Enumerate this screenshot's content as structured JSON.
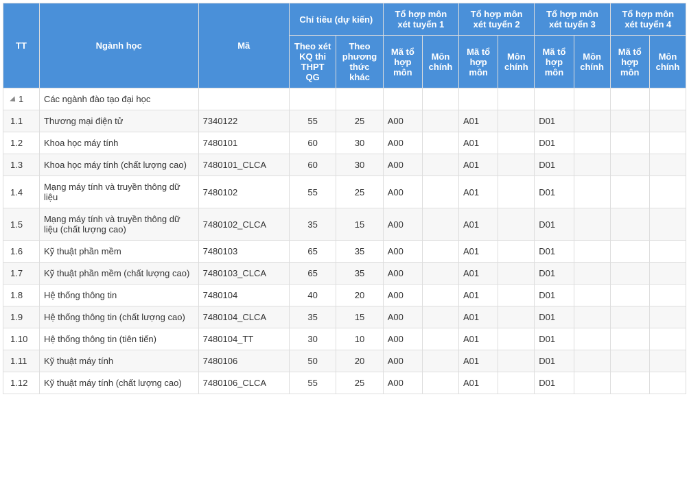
{
  "colors": {
    "header_bg": "#4a90d9",
    "header_fg": "#ffffff",
    "border": "#dddddd",
    "row_alt": "#f7f7f7",
    "text": "#333333"
  },
  "header": {
    "tt": "TT",
    "nganh": "Ngành học",
    "ma": "Mã",
    "chitieu": "Chỉ tiêu (dự kiến)",
    "th1": "Tổ hợp môn xét tuyển 1",
    "th2": "Tổ hợp môn xét tuyển 2",
    "th3": "Tổ hợp môn xét tuyển 3",
    "th4": "Tổ hợp môn xét tuyển 4",
    "sub_kq": "Theo xét KQ thi THPT QG",
    "sub_khac": "Theo phương thức khác",
    "sub_mato": "Mã tổ hợp môn",
    "sub_monchinh": "Môn chính"
  },
  "rows": [
    {
      "tt": "1",
      "expand": true,
      "name": "Các ngành đào tạo đại học",
      "code": "",
      "q1": "",
      "q2": "",
      "m1": "",
      "mc1": "",
      "m2": "",
      "mc2": "",
      "m3": "",
      "mc3": "",
      "m4": "",
      "mc4": ""
    },
    {
      "tt": "1.1",
      "expand": false,
      "name": "Thương mại điện tử",
      "code": "7340122",
      "q1": "55",
      "q2": "25",
      "m1": "A00",
      "mc1": "",
      "m2": "A01",
      "mc2": "",
      "m3": "D01",
      "mc3": "",
      "m4": "",
      "mc4": ""
    },
    {
      "tt": "1.2",
      "expand": false,
      "name": "Khoa học máy tính",
      "code": "7480101",
      "q1": "60",
      "q2": "30",
      "m1": "A00",
      "mc1": "",
      "m2": "A01",
      "mc2": "",
      "m3": "D01",
      "mc3": "",
      "m4": "",
      "mc4": ""
    },
    {
      "tt": "1.3",
      "expand": false,
      "name": "Khoa học máy tính (chất lượng cao)",
      "code": "7480101_CLCA",
      "q1": "60",
      "q2": "30",
      "m1": "A00",
      "mc1": "",
      "m2": "A01",
      "mc2": "",
      "m3": "D01",
      "mc3": "",
      "m4": "",
      "mc4": ""
    },
    {
      "tt": "1.4",
      "expand": false,
      "name": "Mạng máy tính và truyền thông dữ liệu",
      "code": "7480102",
      "q1": "55",
      "q2": "25",
      "m1": "A00",
      "mc1": "",
      "m2": "A01",
      "mc2": "",
      "m3": "D01",
      "mc3": "",
      "m4": "",
      "mc4": ""
    },
    {
      "tt": "1.5",
      "expand": false,
      "name": "Mạng máy tính và truyền thông dữ liệu (chất lượng cao)",
      "code": "7480102_CLCA",
      "q1": "35",
      "q2": "15",
      "m1": "A00",
      "mc1": "",
      "m2": "A01",
      "mc2": "",
      "m3": "D01",
      "mc3": "",
      "m4": "",
      "mc4": ""
    },
    {
      "tt": "1.6",
      "expand": false,
      "name": "Kỹ thuật phần mềm",
      "code": "7480103",
      "q1": "65",
      "q2": "35",
      "m1": "A00",
      "mc1": "",
      "m2": "A01",
      "mc2": "",
      "m3": "D01",
      "mc3": "",
      "m4": "",
      "mc4": ""
    },
    {
      "tt": "1.7",
      "expand": false,
      "name": "Kỹ thuật phần mềm (chất lượng cao)",
      "code": "7480103_CLCA",
      "q1": "65",
      "q2": "35",
      "m1": "A00",
      "mc1": "",
      "m2": "A01",
      "mc2": "",
      "m3": "D01",
      "mc3": "",
      "m4": "",
      "mc4": ""
    },
    {
      "tt": "1.8",
      "expand": false,
      "name": "Hệ thống thông tin",
      "code": "7480104",
      "q1": "40",
      "q2": "20",
      "m1": "A00",
      "mc1": "",
      "m2": "A01",
      "mc2": "",
      "m3": "D01",
      "mc3": "",
      "m4": "",
      "mc4": ""
    },
    {
      "tt": "1.9",
      "expand": false,
      "name": "Hệ thống thông tin (chất lượng cao)",
      "code": "7480104_CLCA",
      "q1": "35",
      "q2": "15",
      "m1": "A00",
      "mc1": "",
      "m2": "A01",
      "mc2": "",
      "m3": "D01",
      "mc3": "",
      "m4": "",
      "mc4": ""
    },
    {
      "tt": "1.10",
      "expand": false,
      "name": "Hệ thống thông tin (tiên tiến)",
      "code": "7480104_TT",
      "q1": "30",
      "q2": "10",
      "m1": "A00",
      "mc1": "",
      "m2": "A01",
      "mc2": "",
      "m3": "D01",
      "mc3": "",
      "m4": "",
      "mc4": ""
    },
    {
      "tt": "1.11",
      "expand": false,
      "name": "Kỹ thuật máy tính",
      "code": "7480106",
      "q1": "50",
      "q2": "20",
      "m1": "A00",
      "mc1": "",
      "m2": "A01",
      "mc2": "",
      "m3": "D01",
      "mc3": "",
      "m4": "",
      "mc4": ""
    },
    {
      "tt": "1.12",
      "expand": false,
      "name": "Kỹ thuật máy tính (chất lượng cao)",
      "code": "7480106_CLCA",
      "q1": "55",
      "q2": "25",
      "m1": "A00",
      "mc1": "",
      "m2": "A01",
      "mc2": "",
      "m3": "D01",
      "mc3": "",
      "m4": "",
      "mc4": ""
    }
  ]
}
